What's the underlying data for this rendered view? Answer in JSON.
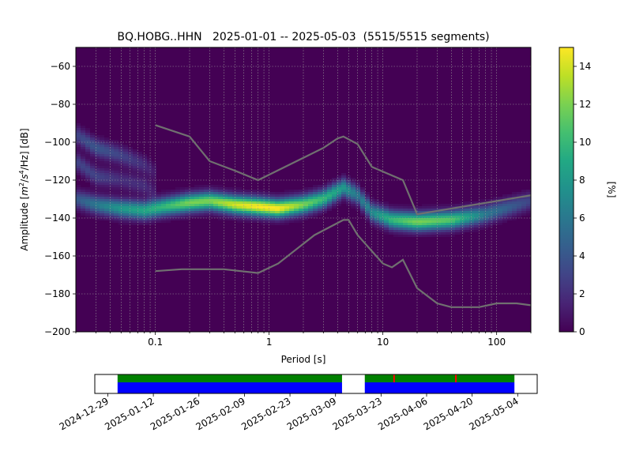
{
  "chart_data": [
    {
      "type": "heatmap",
      "title": "BQ.HOBG..HHN   2025-01-01 -- 2025-05-03  (5515/5515 segments)",
      "xlabel": "Period [s]",
      "ylabel": "Amplitude [$m^2/s^4/Hz$] [dB]",
      "ylabel_parts": {
        "before": "Amplitude [",
        "m": "m",
        "m_sup": "2",
        "slash1": "/",
        "s": "s",
        "s_sup": "4",
        "rest": "/Hz] [dB]"
      },
      "x_scale": "log",
      "xlim": [
        0.02,
        200
      ],
      "ylim": [
        -200,
        -50
      ],
      "x_ticks": [
        {
          "value": 0.1,
          "label": "0.1"
        },
        {
          "value": 1,
          "label": "1"
        },
        {
          "value": 10,
          "label": "10"
        },
        {
          "value": 100,
          "label": "100"
        }
      ],
      "y_ticks": [
        {
          "value": -60,
          "label": "−60"
        },
        {
          "value": -80,
          "label": "−80"
        },
        {
          "value": -100,
          "label": "−100"
        },
        {
          "value": -120,
          "label": "−120"
        },
        {
          "value": -140,
          "label": "−140"
        },
        {
          "value": -160,
          "label": "−160"
        },
        {
          "value": -180,
          "label": "−180"
        },
        {
          "value": -200,
          "label": "−200"
        }
      ],
      "grid": true,
      "colorbar": {
        "label": "[%]",
        "range": [
          0,
          15
        ],
        "ticks": [
          {
            "value": 0,
            "label": "0"
          },
          {
            "value": 2,
            "label": "2"
          },
          {
            "value": 4,
            "label": "4"
          },
          {
            "value": 6,
            "label": "6"
          },
          {
            "value": 8,
            "label": "8"
          },
          {
            "value": 10,
            "label": "10"
          },
          {
            "value": 12,
            "label": "12"
          },
          {
            "value": 14,
            "label": "14"
          }
        ],
        "colormap": "viridis"
      },
      "density_ridges": [
        {
          "x": [
            0.02,
            0.03,
            0.05,
            0.08,
            0.12,
            0.2,
            0.3,
            0.5,
            0.8,
            1.2,
            2,
            3,
            4.5,
            6,
            8,
            12,
            20,
            40,
            80,
            200
          ],
          "y": [
            -130,
            -133,
            -135,
            -136,
            -134,
            -132,
            -131,
            -133,
            -134,
            -135,
            -133,
            -130,
            -124,
            -128,
            -137,
            -141,
            -142,
            -141,
            -138,
            -131
          ],
          "peak_percent": [
            4,
            6,
            8,
            9,
            10,
            12,
            12,
            14,
            15,
            15,
            12,
            10,
            8,
            6,
            7,
            10,
            12,
            11,
            6,
            3
          ]
        },
        {
          "x": [
            0.02,
            0.03,
            0.05,
            0.08,
            0.1
          ],
          "y": [
            -96,
            -103,
            -107,
            -112,
            -116
          ],
          "peak_percent": [
            3,
            4,
            3,
            2,
            1
          ]
        },
        {
          "x": [
            0.02,
            0.03,
            0.05,
            0.08,
            0.1
          ],
          "y": [
            -110,
            -118,
            -120,
            -123,
            -126
          ],
          "peak_percent": [
            3,
            3,
            2,
            2,
            1
          ]
        }
      ],
      "reference_curves": [
        {
          "name": "",
          "x": [
            0.1,
            0.2,
            0.3,
            0.5,
            0.8,
            3,
            4,
            4.5,
            6,
            8,
            15,
            20,
            200
          ],
          "y": [
            -91,
            -97,
            -110,
            -115,
            -120,
            -103,
            -98,
            -97,
            -101,
            -113,
            -120,
            -138,
            -128
          ]
        },
        {
          "name": "",
          "x": [
            0.1,
            0.17,
            0.4,
            0.8,
            1.2,
            2.5,
            4.5,
            5,
            6,
            10,
            12,
            15,
            20,
            30,
            40,
            70,
            100,
            150,
            200
          ],
          "y": [
            -168,
            -167,
            -167,
            -169,
            -164,
            -149,
            -141,
            -141,
            -149,
            -164,
            -166,
            -162,
            -177,
            -185,
            -187,
            -187,
            -185,
            -185,
            -186
          ]
        }
      ]
    },
    {
      "type": "timeline",
      "x_start": "2024-12-25",
      "x_end": "2025-05-10",
      "x_ticks": [
        "2024-12-29",
        "2025-01-12",
        "2025-01-26",
        "2025-02-09",
        "2025-02-23",
        "2025-03-09",
        "2025-03-23",
        "2025-04-06",
        "2025-04-20",
        "2025-05-04"
      ],
      "available_periods": [
        {
          "start": "2025-01-01",
          "end": "2025-03-11"
        },
        {
          "start": "2025-03-18",
          "end": "2025-05-03"
        }
      ],
      "gap_markers": [
        "2025-03-27",
        "2025-04-15"
      ],
      "colors": {
        "data": "#0000ff",
        "processed": "#008000",
        "gap": "#ff0000"
      }
    }
  ]
}
